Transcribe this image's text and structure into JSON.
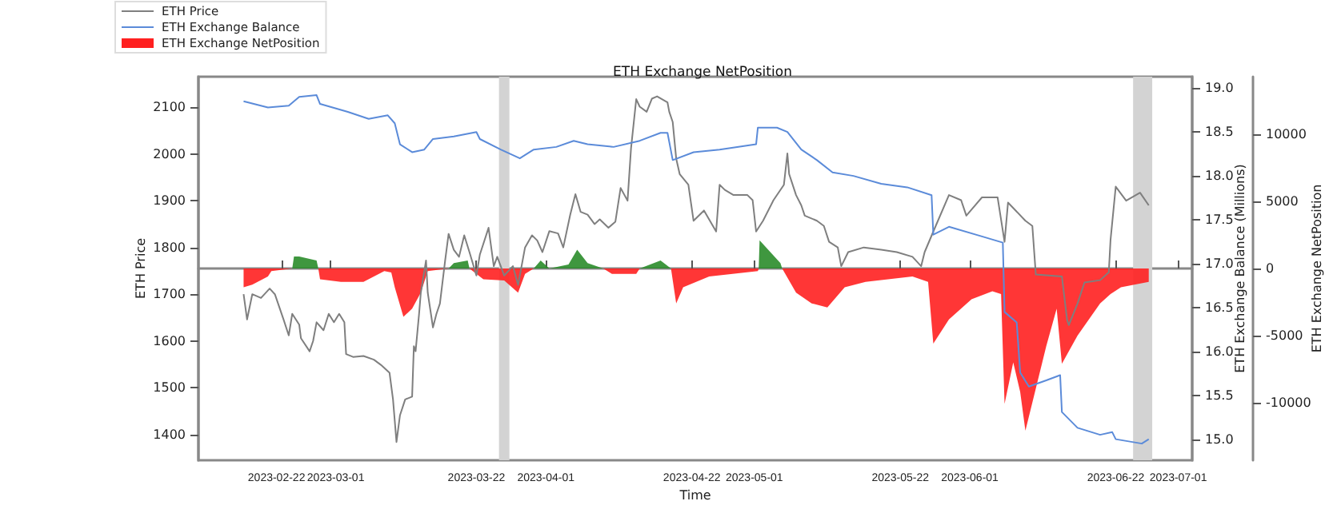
{
  "chart_data": {
    "type": "line",
    "title": "ETH Exchange NetPosition",
    "xlabel": "Time",
    "ylabel": "ETH Price",
    "y2label": "ETH Exchange Balance (Millions)",
    "y3label": "ETH Exchange NetPosition",
    "xlim": [
      "2023-02-10",
      "2023-07-03"
    ],
    "xticks": [
      "2023-02-22",
      "2023-03-01",
      "2023-03-22",
      "2023-04-01",
      "2023-04-22",
      "2023-05-01",
      "2023-05-22",
      "2023-06-01",
      "2023-06-22",
      "2023-07-01"
    ],
    "ylim": [
      1345,
      2165
    ],
    "yticks": [
      1400,
      1500,
      1600,
      1700,
      1800,
      1900,
      2000,
      2100
    ],
    "y2lim": [
      14.76,
      19.13
    ],
    "y2ticks": [
      {
        "value": 15,
        "label": "15.0"
      },
      {
        "value": 15.5,
        "label": "15.5"
      },
      {
        "value": 16,
        "label": "16.0"
      },
      {
        "value": 16.5,
        "label": "16.5"
      },
      {
        "value": 17,
        "label": "17.0"
      },
      {
        "value": 17.5,
        "label": "17.5"
      },
      {
        "value": 18,
        "label": "18.0"
      },
      {
        "value": 18.5,
        "label": "18.5"
      },
      {
        "value": 19,
        "label": "19.0"
      }
    ],
    "y3lim": [
      -14300,
      14300
    ],
    "y3ticks": [
      -10000,
      -5000,
      0,
      5000,
      10000
    ],
    "legend": "top left",
    "marker": "none",
    "bands": [
      {
        "axis": "x",
        "from": "2023-03-25T06:00",
        "to": "2023-03-26T18:00",
        "color": "#d3d3d3"
      },
      {
        "axis": "x",
        "from": "2023-06-24T12:00",
        "to": "2023-06-27T06:00",
        "color": "#d3d3d3"
      }
    ],
    "series": [
      {
        "name": "ETH Exchange NetPosition",
        "type": "area",
        "axis": "y3",
        "color": "#ff2020",
        "x": [
          "2023-02-16T12:00",
          "2023-02-17T18:00",
          "2023-02-20T00:00",
          "2023-02-20T12:00",
          "2023-02-23T12:00",
          "2023-02-27T06:00",
          "2023-02-27T12:00",
          "2023-03-02T12:00",
          "2023-03-05T18:00",
          "2023-03-08T18:00",
          "2023-03-09T18:00",
          "2023-03-10T06:00",
          "2023-03-11T12:00",
          "2023-03-12T18:00",
          "2023-03-14T00:00",
          "2023-03-15T00:00",
          "2023-03-18T00:00",
          "2023-03-21T00:00",
          "2023-03-23T00:00",
          "2023-03-26T00:00",
          "2023-03-28T00:00",
          "2023-03-29T00:00",
          "2023-03-30T06:00",
          "2023-04-09T06:00",
          "2023-04-10T12:00",
          "2023-04-14T00:00",
          "2023-04-14T12:00",
          "2023-04-19T00:00",
          "2023-04-19T18:00",
          "2023-04-20T18:00",
          "2023-04-24T12:00",
          "2023-05-01T12:00",
          "2023-05-01T15:00",
          "2023-05-05T00:00",
          "2023-05-07T00:00",
          "2023-05-09T06:00",
          "2023-05-11T12:00",
          "2023-05-14T00:00",
          "2023-05-17T00:00",
          "2023-05-23T18:00",
          "2023-05-26T00:00",
          "2023-05-26T18:00",
          "2023-05-29T00:00",
          "2023-06-01T06:00",
          "2023-06-04T06:00",
          "2023-06-05T12:00",
          "2023-06-06T00:00",
          "2023-06-07T06:00",
          "2023-06-08T06:00",
          "2023-06-09T00:00",
          "2023-06-12T00:00",
          "2023-06-13T12:00",
          "2023-06-14T06:00",
          "2023-06-16T12:00",
          "2023-06-19T18:00",
          "2023-06-21T06:00",
          "2023-06-22T18:00",
          "2023-06-26T18:00"
        ],
        "values": [
          -1400,
          -1200,
          -600,
          -200,
          0,
          0,
          -800,
          -1000,
          -1000,
          -200,
          -300,
          -1400,
          -3600,
          -3000,
          -1800,
          -200,
          0,
          0,
          -800,
          -900,
          -1800,
          -400,
          0,
          0,
          -400,
          -400,
          0,
          0,
          -2600,
          -1400,
          -600,
          -200,
          0,
          0,
          -1800,
          -2600,
          -2900,
          -1400,
          -1000,
          -600,
          -1000,
          -5600,
          -3800,
          -2300,
          -1700,
          -1900,
          -10100,
          -7000,
          -9200,
          -12100,
          -5800,
          -3000,
          -7100,
          -5000,
          -2600,
          -1900,
          -1400,
          -1000
        ]
      },
      {
        "type": "area",
        "axis": "y3",
        "color": "#2a8c2a",
        "x": [
          "2023-02-23T12:00",
          "2023-02-23T18:00",
          "2023-02-24T12:00",
          "2023-02-27T00:00",
          "2023-02-27T06:00",
          "2023-03-18T00:00",
          "2023-03-18T18:00",
          "2023-03-20T18:00",
          "2023-03-21T00:00",
          "2023-03-30T06:00",
          "2023-03-31T06:00",
          "2023-04-01T12:00",
          "2023-04-04T06:00",
          "2023-04-05T12:00",
          "2023-04-07T00:00",
          "2023-04-09T06:00",
          "2023-04-14T12:00",
          "2023-04-17T12:00",
          "2023-04-19T00:00",
          "2023-05-01T15:00",
          "2023-05-01T18:00",
          "2023-05-04T18:00",
          "2023-05-05T00:00"
        ],
        "values": [
          0,
          900,
          900,
          600,
          0,
          0,
          400,
          600,
          0,
          0,
          600,
          0,
          300,
          1400,
          400,
          0,
          0,
          600,
          0,
          0,
          2100,
          400,
          0
        ]
      },
      {
        "name": "ETH Price",
        "type": "line",
        "color": "#7f7f7f",
        "x": [
          "2023-02-16T12:00",
          "2023-02-17T00:00",
          "2023-02-17T18:00",
          "2023-02-19T00:00",
          "2023-02-20T06:00",
          "2023-02-21T00:00",
          "2023-02-22T06:00",
          "2023-02-23T00:00",
          "2023-02-23T12:00",
          "2023-02-24T12:00",
          "2023-02-24T18:00",
          "2023-02-26T00:00",
          "2023-02-26T12:00",
          "2023-02-27T00:00",
          "2023-02-28T00:00",
          "2023-02-28T18:00",
          "2023-03-01T12:00",
          "2023-03-02T06:00",
          "2023-03-03T00:00",
          "2023-03-03T06:00",
          "2023-03-04T06:00",
          "2023-03-05T18:00",
          "2023-03-07T06:00",
          "2023-03-08T06:00",
          "2023-03-09T12:00",
          "2023-03-10T00:00",
          "2023-03-10T12:00",
          "2023-03-11T00:00",
          "2023-03-11T18:00",
          "2023-03-12T18:00",
          "2023-03-13T00:00",
          "2023-03-13T06:00",
          "2023-03-13T18:00",
          "2023-03-14T00:00",
          "2023-03-14T18:00",
          "2023-03-15T00:00",
          "2023-03-15T18:00",
          "2023-03-16T06:00",
          "2023-03-16T18:00",
          "2023-03-17T12:00",
          "2023-03-18T00:00",
          "2023-03-18T18:00",
          "2023-03-19T12:00",
          "2023-03-20T06:00",
          "2023-03-21T00:00",
          "2023-03-22T00:00",
          "2023-03-22T12:00",
          "2023-03-23T18:00",
          "2023-03-24T12:00",
          "2023-03-25T00:00",
          "2023-03-26T00:00",
          "2023-03-27T06:00",
          "2023-03-28T00:00",
          "2023-03-29T00:00",
          "2023-03-30T00:00",
          "2023-03-30T18:00",
          "2023-03-31T12:00",
          "2023-04-01T12:00",
          "2023-04-02T18:00",
          "2023-04-03T12:00",
          "2023-04-04T12:00",
          "2023-04-05T06:00",
          "2023-04-06T00:00",
          "2023-04-07T00:00",
          "2023-04-08T00:00",
          "2023-04-08T18:00",
          "2023-04-10T00:00",
          "2023-04-11T00:00",
          "2023-04-11T18:00",
          "2023-04-12T18:00",
          "2023-04-13T06:00",
          "2023-04-14T00:00",
          "2023-04-14T12:00",
          "2023-04-15T12:00",
          "2023-04-16T06:00",
          "2023-04-17T00:00",
          "2023-04-18T12:00",
          "2023-04-18T18:00",
          "2023-04-19T06:00",
          "2023-04-19T18:00",
          "2023-04-20T06:00",
          "2023-04-21T12:00",
          "2023-04-22T06:00",
          "2023-04-23T18:00",
          "2023-04-25T12:00",
          "2023-04-26T00:00",
          "2023-04-26T18:00",
          "2023-04-28T00:00",
          "2023-04-30T00:00",
          "2023-04-30T18:00",
          "2023-05-01T06:00",
          "2023-05-02T06:00",
          "2023-05-03T18:00",
          "2023-05-05T06:00",
          "2023-05-05T18:00",
          "2023-05-06T00:00",
          "2023-05-07T00:00",
          "2023-05-07T18:00",
          "2023-05-08T06:00",
          "2023-05-10T00:00",
          "2023-05-11T00:00",
          "2023-05-11T18:00",
          "2023-05-13T00:00",
          "2023-05-13T12:00",
          "2023-05-14T12:00",
          "2023-05-16T18:00",
          "2023-05-19T06:00",
          "2023-05-21T12:00",
          "2023-05-23T18:00",
          "2023-05-25T00:00",
          "2023-05-25T12:00",
          "2023-05-26T18:00",
          "2023-05-29T00:00",
          "2023-05-30T18:00",
          "2023-05-31T12:00",
          "2023-06-02T18:00",
          "2023-06-05T00:00",
          "2023-06-06T00:00",
          "2023-06-06T12:00",
          "2023-06-09T00:00",
          "2023-06-10T00:00",
          "2023-06-10T12:00",
          "2023-06-14T06:00",
          "2023-06-15T00:00",
          "2023-06-15T06:00",
          "2023-06-16T12:00",
          "2023-06-17T12:00",
          "2023-06-19T18:00",
          "2023-06-21T00:00",
          "2023-06-21T06:00",
          "2023-06-22T00:00",
          "2023-06-23T12:00",
          "2023-06-25T12:00",
          "2023-06-26T18:00"
        ],
        "values": [
          1700,
          1646,
          1700,
          1692,
          1712,
          1700,
          1646,
          1612,
          1658,
          1635,
          1606,
          1578,
          1600,
          1640,
          1623,
          1658,
          1640,
          1658,
          1640,
          1572,
          1566,
          1568,
          1560,
          1549,
          1532,
          1475,
          1384,
          1441,
          1475,
          1481,
          1589,
          1578,
          1658,
          1703,
          1772,
          1703,
          1629,
          1658,
          1680,
          1772,
          1829,
          1795,
          1780,
          1826,
          1790,
          1740,
          1785,
          1842,
          1760,
          1780,
          1740,
          1760,
          1720,
          1800,
          1826,
          1815,
          1790,
          1835,
          1830,
          1800,
          1870,
          1914,
          1876,
          1870,
          1850,
          1860,
          1842,
          1855,
          1927,
          1900,
          2012,
          2117,
          2101,
          2090,
          2118,
          2123,
          2110,
          2090,
          2068,
          1990,
          1957,
          1934,
          1857,
          1879,
          1834,
          1934,
          1923,
          1912,
          1912,
          1901,
          1834,
          1857,
          1901,
          1934,
          2001,
          1957,
          1912,
          1890,
          1868,
          1857,
          1846,
          1812,
          1800,
          1760,
          1790,
          1800,
          1795,
          1790,
          1780,
          1760,
          1790,
          1834,
          1912,
          1901,
          1868,
          1907,
          1907,
          1812,
          1896,
          1857,
          1846,
          1742,
          1738,
          1645,
          1634,
          1680,
          1725,
          1730,
          1747,
          1816,
          1930,
          1900,
          1917,
          1890
        ]
      },
      {
        "name": "ETH Exchange Balance",
        "type": "line",
        "axis": "y2",
        "color": "#5b8bd9",
        "x": [
          "2023-02-16T12:00",
          "2023-02-20T00:00",
          "2023-02-23T00:00",
          "2023-02-24T12:00",
          "2023-02-27T00:00",
          "2023-02-27T12:00",
          "2023-03-03T12:00",
          "2023-03-06T12:00",
          "2023-03-09T06:00",
          "2023-03-10T06:00",
          "2023-03-11T00:00",
          "2023-03-12T18:00",
          "2023-03-14T12:00",
          "2023-03-15T18:00",
          "2023-03-18T18:00",
          "2023-03-22T00:00",
          "2023-03-22T12:00",
          "2023-03-25T12:00",
          "2023-03-28T06:00",
          "2023-03-30T06:00",
          "2023-04-02T12:00",
          "2023-04-05T00:00",
          "2023-04-07T00:00",
          "2023-04-10T18:00",
          "2023-04-14T12:00",
          "2023-04-17T12:00",
          "2023-04-18T12:00",
          "2023-04-19T06:00",
          "2023-04-22T06:00",
          "2023-04-26T00:00",
          "2023-05-01T06:00",
          "2023-05-01T12:00",
          "2023-05-04T06:00",
          "2023-05-05T18:00",
          "2023-05-07T18:00",
          "2023-05-10T00:00",
          "2023-05-12T06:00",
          "2023-05-15T06:00",
          "2023-05-19T06:00",
          "2023-05-23T00:00",
          "2023-05-26T12:00",
          "2023-05-26T18:00",
          "2023-05-29T00:00",
          "2023-06-02T18:00",
          "2023-06-05T18:00",
          "2023-06-06T00:00",
          "2023-06-07T18:00",
          "2023-06-08T06:00",
          "2023-06-09T12:00",
          "2023-06-12T00:00",
          "2023-06-14T00:00",
          "2023-06-14T06:00",
          "2023-06-16T12:00",
          "2023-06-19T18:00",
          "2023-06-21T12:00",
          "2023-06-22T00:00",
          "2023-06-25T18:00",
          "2023-06-26T18:00"
        ],
        "values": [
          18.85,
          18.78,
          18.8,
          18.9,
          18.92,
          18.82,
          18.73,
          18.65,
          18.69,
          18.6,
          18.36,
          18.27,
          18.3,
          18.42,
          18.45,
          18.5,
          18.42,
          18.3,
          18.2,
          18.3,
          18.33,
          18.4,
          18.36,
          18.33,
          18.4,
          18.49,
          18.49,
          18.18,
          18.27,
          18.3,
          18.36,
          18.55,
          18.55,
          18.5,
          18.3,
          18.18,
          18.04,
          18.0,
          17.91,
          17.87,
          17.78,
          17.33,
          17.42,
          17.31,
          17.24,
          16.45,
          16.33,
          15.76,
          15.6,
          15.67,
          15.73,
          15.31,
          15.13,
          15.05,
          15.08,
          15.0,
          14.95,
          15.0
        ]
      }
    ]
  }
}
